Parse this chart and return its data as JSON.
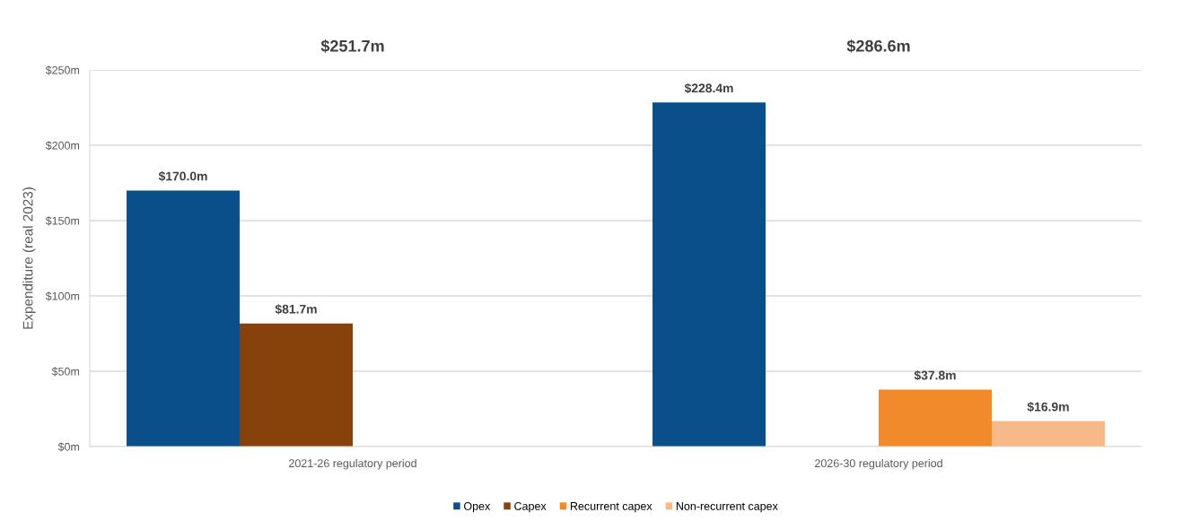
{
  "chart_data": {
    "type": "bar",
    "ylabel": "Expenditure (real 2023)",
    "categories": [
      "2021-26 regulatory period",
      "2026-30 regulatory period"
    ],
    "series": [
      {
        "name": "Opex",
        "color": "#0b4f8a",
        "values": [
          170.0,
          228.4
        ],
        "value_labels": [
          "$170.0m",
          "$228.4m"
        ]
      },
      {
        "name": "Capex",
        "color": "#86420a",
        "values": [
          81.7,
          null
        ],
        "value_labels": [
          "$81.7m",
          null
        ]
      },
      {
        "name": "Recurrent capex",
        "color": "#f08a2a",
        "values": [
          null,
          37.8
        ],
        "value_labels": [
          null,
          "$37.8m"
        ]
      },
      {
        "name": "Non-recurrent capex",
        "color": "#f7b98a",
        "values": [
          null,
          16.9
        ],
        "value_labels": [
          null,
          "$16.9m"
        ]
      }
    ],
    "annotations": [
      "$251.7m",
      "$286.6m"
    ],
    "ylim": [
      0,
      250
    ],
    "yticks": [
      {
        "value": 0,
        "label": "$0m"
      },
      {
        "value": 50,
        "label": "$50m"
      },
      {
        "value": 100,
        "label": "$100m"
      },
      {
        "value": 150,
        "label": "$150m"
      },
      {
        "value": 200,
        "label": "$200m"
      },
      {
        "value": 250,
        "label": "$250m"
      }
    ],
    "grid": "y",
    "legend": "bottom"
  }
}
